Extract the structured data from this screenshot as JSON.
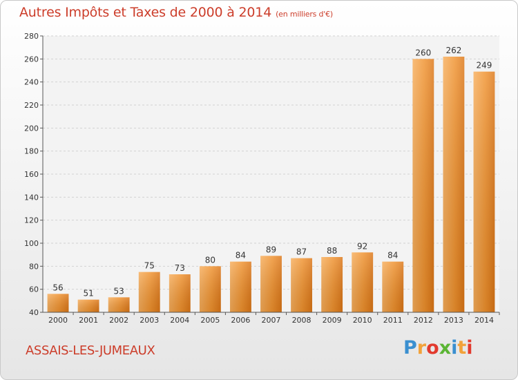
{
  "header": {
    "title": "Autres Impôts et Taxes de 2000 à 2014",
    "subtitle": "(en milliers d'€)"
  },
  "footer": {
    "commune": "ASSAIS-LES-JUMEAUX",
    "logo_letters": [
      "P",
      "r",
      "o",
      "x",
      "i",
      "t",
      "i"
    ],
    "logo_colors": [
      "#3a8fd0",
      "#f2a23a",
      "#e23a2e",
      "#5bb534",
      "#3a8fd0",
      "#f2a23a",
      "#e23a2e"
    ]
  },
  "chart_data": {
    "type": "bar",
    "title": "Autres Impôts et Taxes de 2000 à 2014",
    "subtitle": "(en milliers d'€)",
    "categories": [
      "2000",
      "2001",
      "2002",
      "2003",
      "2004",
      "2005",
      "2006",
      "2007",
      "2008",
      "2009",
      "2010",
      "2011",
      "2012",
      "2013",
      "2014"
    ],
    "values": [
      56,
      51,
      53,
      75,
      73,
      80,
      84,
      89,
      87,
      88,
      92,
      84,
      260,
      262,
      249
    ],
    "ylim": [
      40,
      280
    ],
    "yticks": [
      40,
      60,
      80,
      100,
      120,
      140,
      160,
      180,
      200,
      220,
      240,
      260,
      280
    ],
    "grid": true,
    "bar_color": "#f0922e",
    "xlabel": "",
    "ylabel": ""
  }
}
